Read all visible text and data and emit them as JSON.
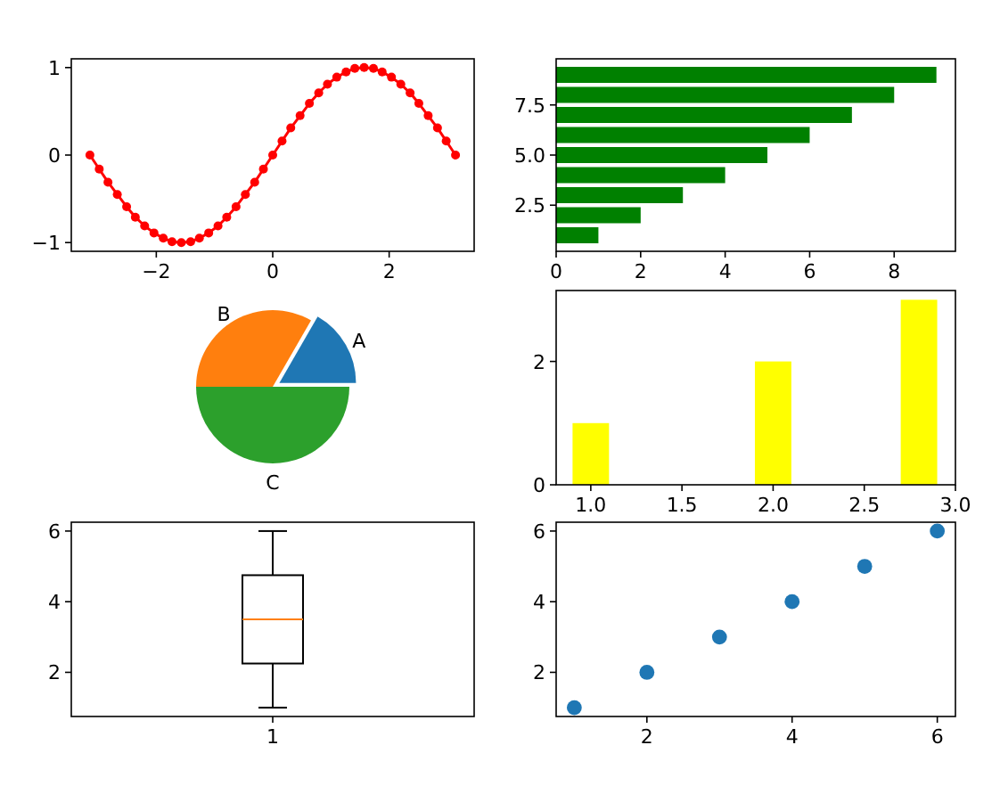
{
  "chart_data": [
    {
      "type": "line",
      "x": [
        -3.14,
        -2.98,
        -2.83,
        -2.67,
        -2.51,
        -2.36,
        -2.2,
        -2.04,
        -1.88,
        -1.73,
        -1.57,
        -1.41,
        -1.26,
        -1.1,
        -0.94,
        -0.79,
        -0.63,
        -0.47,
        -0.31,
        -0.16,
        0,
        0.16,
        0.31,
        0.47,
        0.63,
        0.79,
        0.94,
        1.1,
        1.26,
        1.41,
        1.57,
        1.73,
        1.88,
        2.04,
        2.2,
        2.36,
        2.51,
        2.67,
        2.83,
        2.98,
        3.14
      ],
      "series": [
        {
          "color": "#ff0000",
          "values": [
            0,
            -0.16,
            -0.31,
            -0.45,
            -0.59,
            -0.71,
            -0.81,
            -0.89,
            -0.95,
            -0.99,
            -1,
            -0.99,
            -0.95,
            -0.89,
            -0.81,
            -0.71,
            -0.59,
            -0.45,
            -0.31,
            -0.16,
            0,
            0.16,
            0.31,
            0.45,
            0.59,
            0.71,
            0.81,
            0.89,
            0.95,
            0.99,
            1,
            0.99,
            0.95,
            0.89,
            0.81,
            0.71,
            0.59,
            0.45,
            0.31,
            0.16,
            0
          ]
        }
      ],
      "marker": "circle",
      "xlim": [
        -3.46,
        3.46
      ],
      "xticks": [
        {
          "value": -2,
          "label": "−2"
        },
        0,
        2
      ],
      "ylim": [
        -1.1,
        1.1
      ],
      "yticks": [
        {
          "value": -1,
          "label": "−1"
        },
        0,
        1
      ]
    },
    {
      "type": "bar",
      "orientation": "horizontal",
      "x": [
        1,
        2,
        3,
        4,
        5,
        6,
        7,
        8,
        9
      ],
      "values": [
        1,
        2,
        3,
        4,
        5,
        6,
        7,
        8,
        9
      ],
      "color": "#008000",
      "xlim": [
        0,
        9.45
      ],
      "xticks": [
        0,
        2,
        4,
        6,
        8
      ],
      "ylim": [
        0.2,
        9.8
      ],
      "yticks": [
        2.5,
        {
          "value": 5,
          "label": "5.0"
        },
        7.5
      ]
    },
    {
      "type": "pie",
      "categories": [
        "A",
        "B",
        "C"
      ],
      "values": [
        16.67,
        33.33,
        50
      ],
      "colors": [
        "#1f77b4",
        "#ff7f0e",
        "#2ca02c"
      ]
    },
    {
      "type": "bar",
      "x": [
        1,
        2,
        2.8
      ],
      "values": [
        1,
        2,
        3
      ],
      "color": "#ffff00",
      "xlim": [
        0.81,
        3.0
      ],
      "xticks": [
        {
          "value": 1,
          "label": "1.0"
        },
        1.5,
        {
          "value": 2,
          "label": "2.0"
        },
        2.5,
        {
          "value": 3,
          "label": "3.0"
        }
      ],
      "ylim": [
        0,
        3.15
      ],
      "yticks": [
        0,
        2
      ]
    },
    {
      "type": "box",
      "categories": [
        "1"
      ],
      "boxes": [
        {
          "low": 1,
          "q1": 2.25,
          "median": 3.5,
          "q3": 4.75,
          "high": 6
        }
      ],
      "ylim": [
        0.75,
        6.25
      ],
      "yticks": [
        2,
        4,
        6
      ]
    },
    {
      "type": "scatter",
      "x": [
        1,
        2,
        3,
        4,
        5,
        6
      ],
      "values": [
        1,
        2,
        3,
        4,
        5,
        6
      ],
      "color": "#1f77b4",
      "xlim": [
        0.75,
        6.25
      ],
      "xticks": [
        2,
        4,
        6
      ],
      "ylim": [
        0.75,
        6.25
      ],
      "yticks": [
        2,
        4,
        6
      ]
    }
  ]
}
